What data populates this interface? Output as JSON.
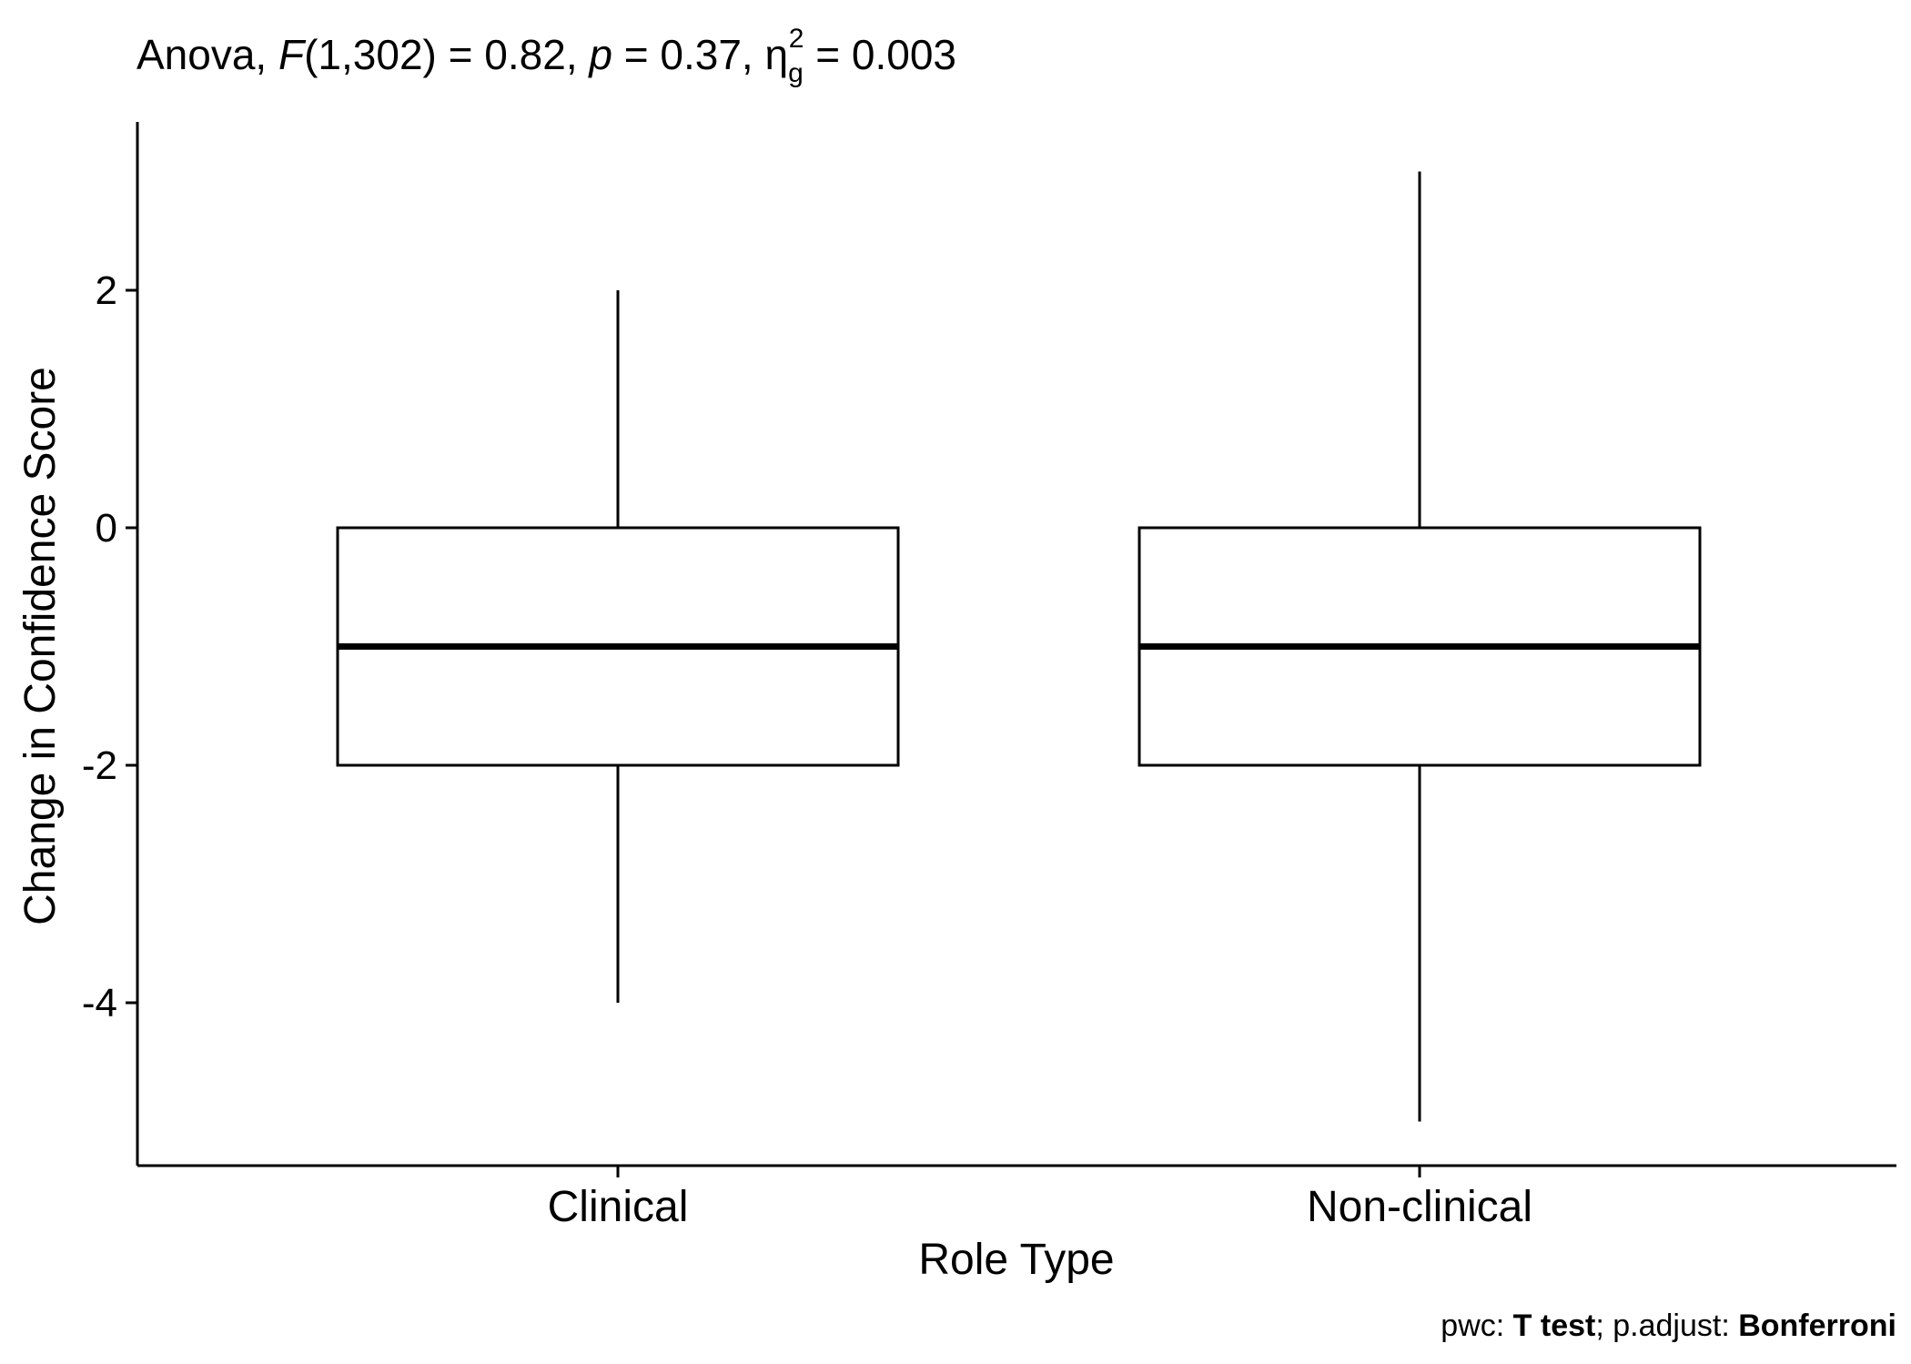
{
  "chart_data": {
    "type": "boxplot",
    "title": {
      "prefix": "Anova, ",
      "stat_symbol": "F",
      "df": "(1,302)",
      "stat_value": " = 0.82, ",
      "p_symbol": "p",
      "p_value": " = 0.37, ",
      "effect_symbol": "η",
      "effect_subscript": "g",
      "effect_superscript": "2",
      "effect_value": " = 0.003"
    },
    "xlabel": "Role Type",
    "ylabel": "Change in Confidence Score",
    "categories": [
      "Clinical",
      "Non-clinical"
    ],
    "boxes": [
      {
        "category": "Clinical",
        "min": -4,
        "q1": -2,
        "median": -1,
        "q3": 0,
        "max": 2
      },
      {
        "category": "Non-clinical",
        "min": -5,
        "q1": -2,
        "median": -1,
        "q3": 0,
        "max": 3
      }
    ],
    "y_ticks": [
      -4,
      -2,
      0,
      2
    ],
    "y_tick_labels": [
      "-4",
      "-2",
      "0",
      "2"
    ],
    "ylim": [
      -5.4,
      3.4
    ],
    "grid": false,
    "legend": "none",
    "caption": {
      "part1": "pwc: ",
      "method": "T test",
      "part2": "; p.adjust: ",
      "adjust": "Bonferroni"
    },
    "colors": {
      "box_fill": "#ffffff",
      "stroke": "#000000"
    }
  }
}
